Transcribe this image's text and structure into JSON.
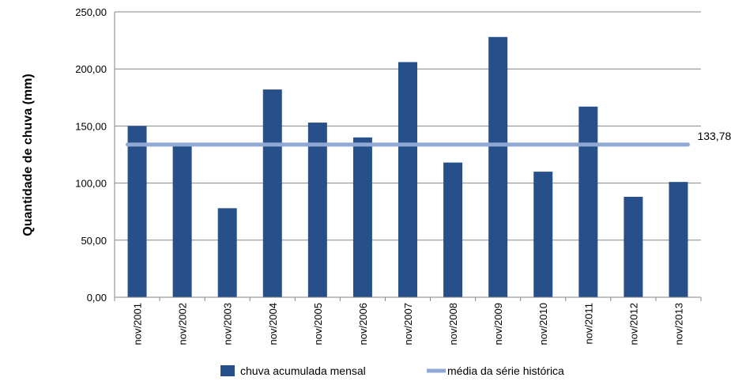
{
  "chart_data": {
    "type": "bar",
    "ylabel": "Quantidade de chuva (mm)",
    "categories": [
      "nov/2001",
      "nov/2002",
      "nov/2003",
      "nov/2004",
      "nov/2005",
      "nov/2006",
      "nov/2007",
      "nov/2008",
      "nov/2009",
      "nov/2010",
      "nov/2011",
      "nov/2012",
      "nov/2013"
    ],
    "series": [
      {
        "name": "chuva acumulada mensal",
        "type": "bar",
        "color": "#27508a",
        "values": [
          150.0,
          133.0,
          78.0,
          182.0,
          153.0,
          140.0,
          206.0,
          118.0,
          228.0,
          110.0,
          167.0,
          88.0,
          101.0
        ]
      },
      {
        "name": "média da série histórica",
        "type": "line",
        "color": "#8fa9d4",
        "value": 133.78,
        "label": "133,78"
      }
    ],
    "ylim": [
      0,
      250
    ],
    "yticks": [
      0,
      50,
      100,
      150,
      200,
      250
    ],
    "ytick_labels": [
      "0,00",
      "50,00",
      "100,00",
      "150,00",
      "200,00",
      "250,00"
    ],
    "grid": true,
    "legend_position": "bottom"
  }
}
